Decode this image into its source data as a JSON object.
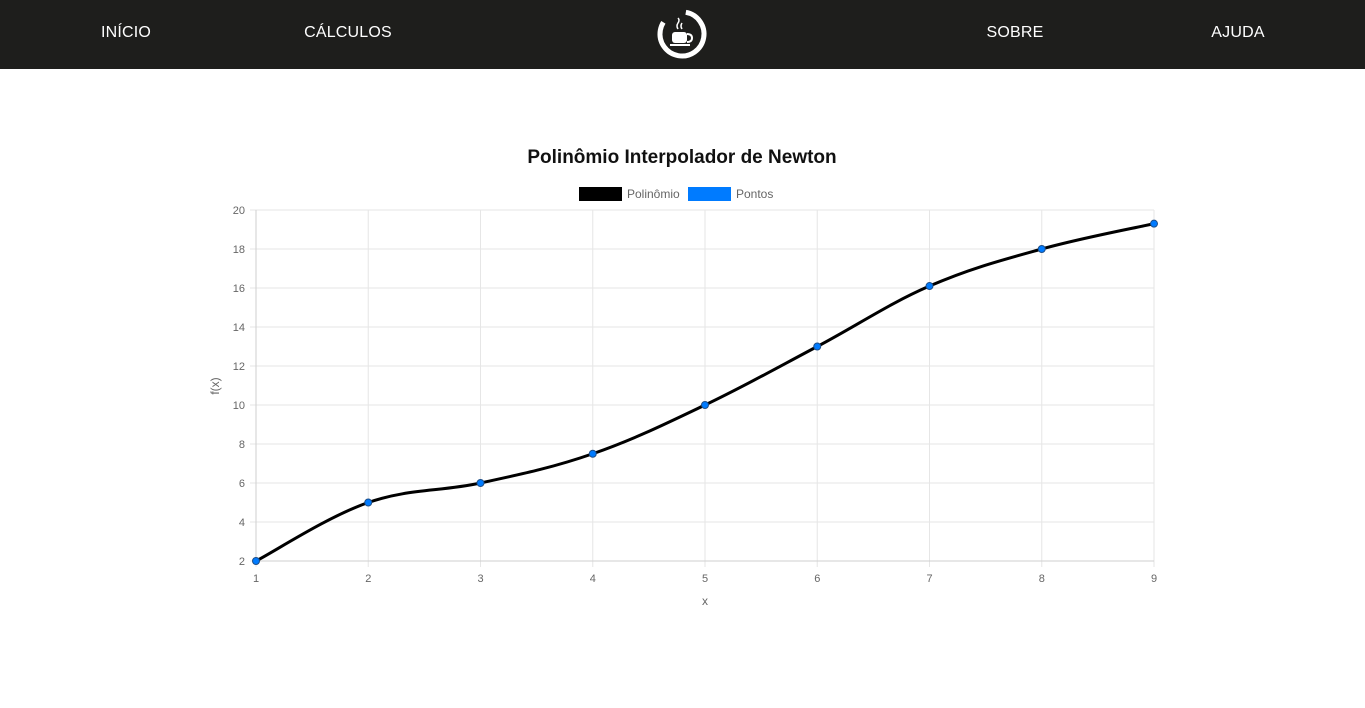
{
  "nav": {
    "items": [
      "INÍCIO",
      "CÁLCULOS",
      "SOBRE",
      "AJUDA"
    ],
    "logo_icon": "coffee-cup-logo-icon"
  },
  "colors": {
    "navbar_bg": "#1e1e1c",
    "line": "#000000",
    "points": "#007bff",
    "grid": "#e6e6e6"
  },
  "chart_data": {
    "type": "line",
    "title": "Polinômio Interpolador de Newton",
    "xlabel": "x",
    "ylabel": "f(x)",
    "xlim": [
      1,
      9
    ],
    "ylim": [
      2,
      20
    ],
    "x_ticks": [
      1,
      2,
      3,
      4,
      5,
      6,
      7,
      8,
      9
    ],
    "y_ticks": [
      2,
      4,
      6,
      8,
      10,
      12,
      14,
      16,
      18,
      20
    ],
    "grid": true,
    "legend_position": "top-center",
    "series": [
      {
        "name": "Polinômio",
        "style": "smooth-line",
        "color": "#000000",
        "x": [
          1,
          2,
          3,
          4,
          5,
          6,
          7,
          8,
          9
        ],
        "values": [
          2,
          5,
          6,
          7.5,
          10,
          13,
          16.1,
          18,
          19.3
        ]
      },
      {
        "name": "Pontos",
        "style": "points",
        "color": "#007bff",
        "x": [
          1,
          2,
          3,
          4,
          5,
          6,
          7,
          8,
          9
        ],
        "values": [
          2,
          5,
          6,
          7.5,
          10,
          13,
          16.1,
          18,
          19.3
        ]
      }
    ]
  }
}
